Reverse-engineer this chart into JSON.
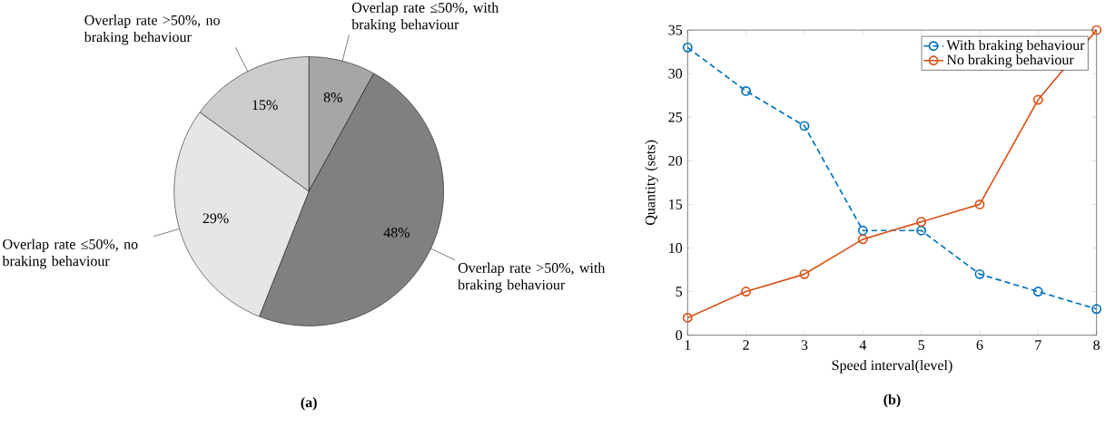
{
  "chart_data": [
    {
      "type": "pie",
      "title": "(a)",
      "categories": [
        "Overlap rate ≤50%, with braking behaviour",
        "Overlap rate >50%, with braking behaviour",
        "Overlap rate ≤50%, no braking behaviour",
        "Overlap rate >50%, no braking behaviour"
      ],
      "values": [
        8,
        48,
        29,
        15
      ],
      "value_labels": [
        "8%",
        "48%",
        "29%",
        "15%"
      ],
      "colors": [
        "#a6a6a6",
        "#808080",
        "#e6e6e6",
        "#cccccc"
      ]
    },
    {
      "type": "line",
      "title": "(b)",
      "xlabel": "Speed interval(level)",
      "ylabel": "Quantity (sets)",
      "x": [
        1,
        2,
        3,
        4,
        5,
        6,
        7,
        8
      ],
      "series": [
        {
          "name": "With braking behaviour",
          "color": "#0072bd",
          "line_style": "dashed",
          "values": [
            33,
            28,
            24,
            12,
            12,
            7,
            5,
            3
          ]
        },
        {
          "name": "No braking behaviour",
          "color": "#d95319",
          "line_style": "solid",
          "values": [
            2,
            5,
            7,
            11,
            13,
            15,
            27,
            35
          ]
        }
      ],
      "xlim": [
        1,
        8
      ],
      "ylim": [
        0,
        35
      ],
      "xticks": [
        1,
        2,
        3,
        4,
        5,
        6,
        7,
        8
      ],
      "yticks": [
        0,
        5,
        10,
        15,
        20,
        25,
        30,
        35
      ],
      "marker": "circle",
      "legend": "top right"
    }
  ]
}
